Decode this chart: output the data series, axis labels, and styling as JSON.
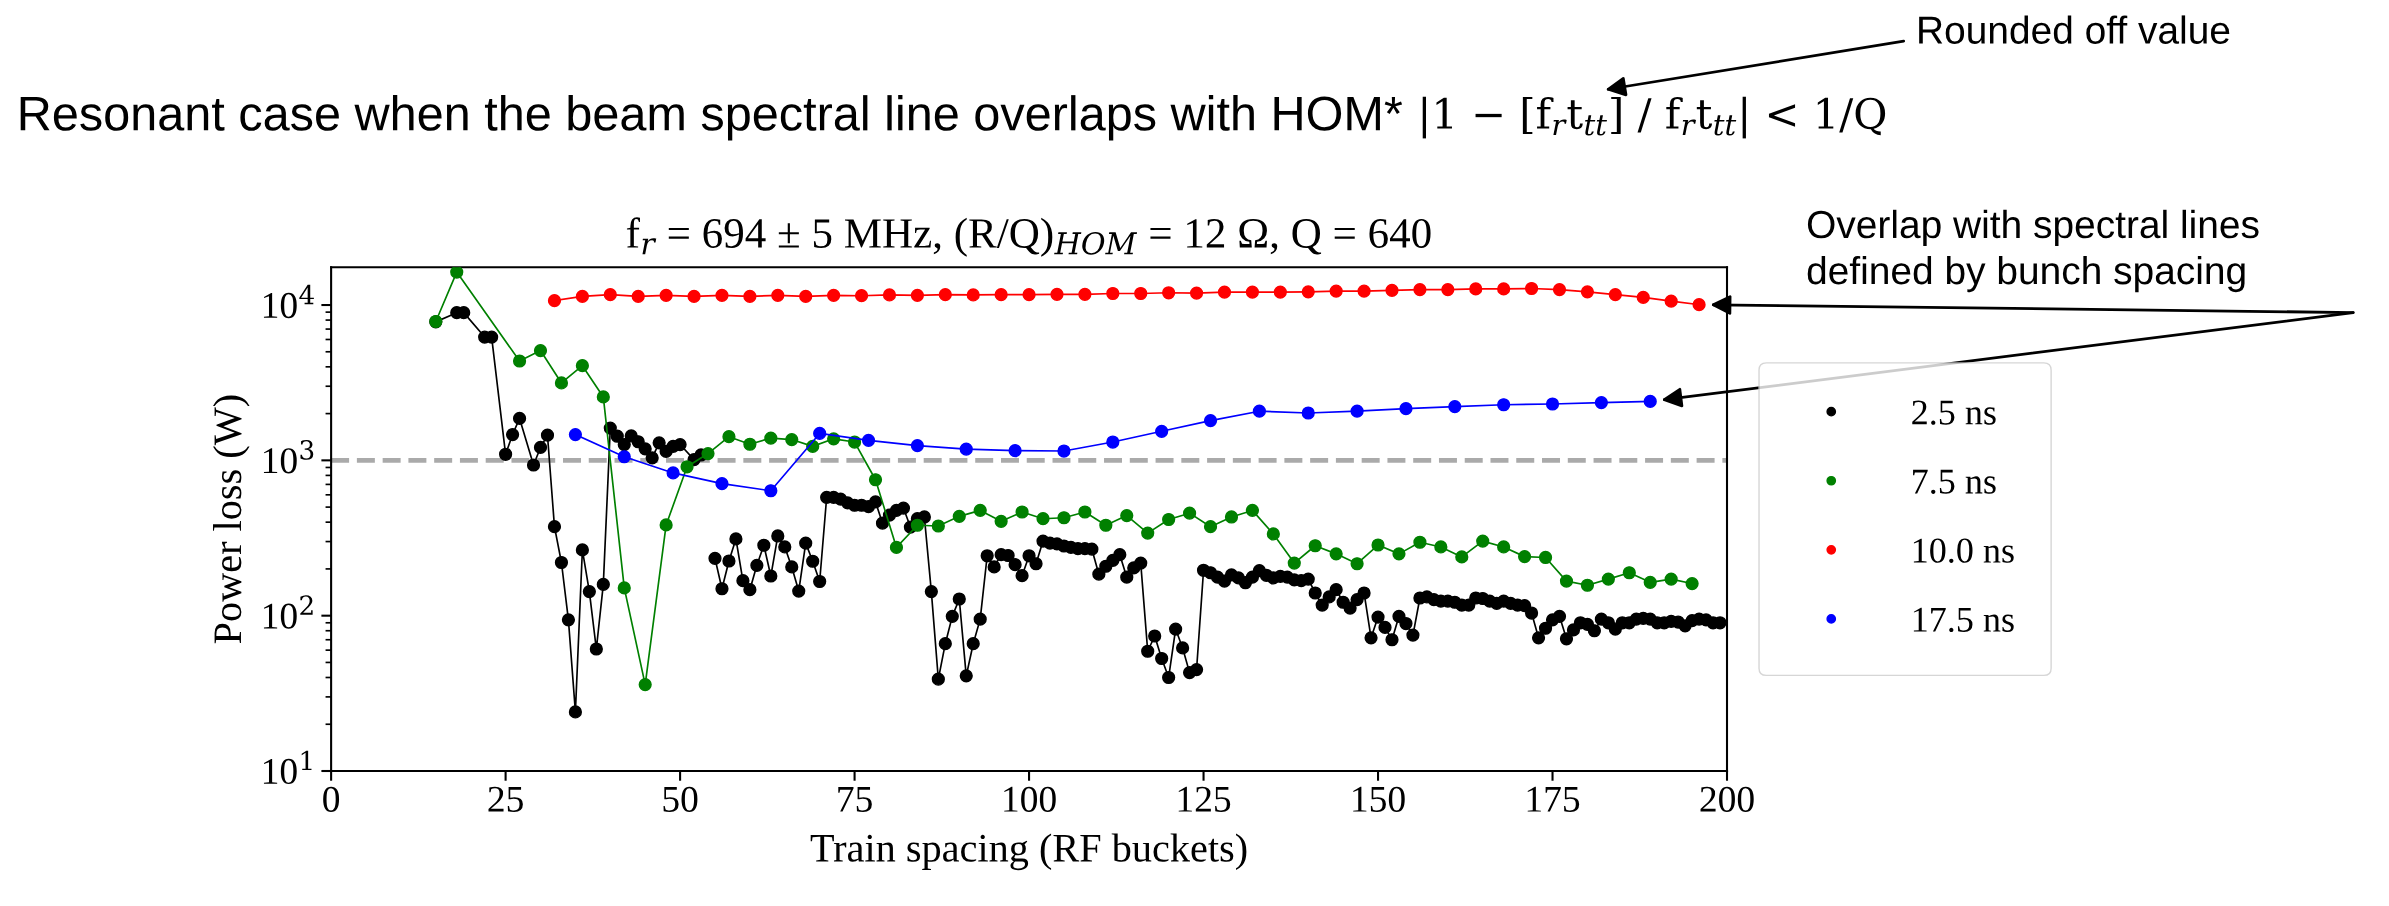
{
  "chart_data": {
    "type": "line",
    "title": "Resonant case when the beam spectral line overlaps with HOM*",
    "subtitle": "f$_{r}$ = 694 ± 5 MHz, (R/Q)$_{HOM}$ = 12 Ω, Q = 640",
    "xlabel": "Train spacing (RF buckets)",
    "ylabel": "Power loss (W)",
    "annotations": [
      "|1 − [f$_{r}$t$_{tt}$] / f$_{r}$t$_{tt}$| < 1/Q",
      "Rounded off value",
      "Overlap with spectral lines\ndefined by bunch spacing"
    ],
    "log": "y",
    "xlim": [
      0,
      200
    ],
    "xticks": [
      0,
      25,
      50,
      75,
      100,
      125,
      150,
      175,
      200
    ],
    "ylim": [
      10,
      17500
    ],
    "yticks": [
      {
        "value": 10,
        "label": "10$^{1}$"
      },
      {
        "value": 100,
        "label": "10$^{2}$"
      },
      {
        "value": 1000,
        "label": "10$^{3}$"
      },
      {
        "value": 10000,
        "label": "10$^{4}$"
      }
    ],
    "grid": false,
    "legend": "right",
    "marker": "circle",
    "line_style": "solid",
    "ref_lines": [
      {
        "axis": "y",
        "value": 1000,
        "color": "#aaaaaa",
        "line_style": "dashed"
      }
    ],
    "series": [
      {
        "name": "2.5 ns",
        "color": "#000000",
        "x": [
          15,
          18,
          19,
          22,
          23,
          25,
          26,
          27,
          29,
          30,
          31,
          32,
          33,
          34,
          35,
          36,
          37,
          38,
          39,
          40,
          41,
          42,
          43,
          44,
          45,
          46,
          47,
          48,
          49,
          50,
          52,
          53,
          54,
          55,
          56,
          57,
          58,
          59,
          60,
          61,
          62,
          63,
          64,
          65,
          66,
          67,
          68,
          69,
          70,
          71,
          72,
          73,
          74,
          75,
          76,
          77,
          78,
          79,
          80,
          81,
          82,
          83,
          84,
          85,
          86,
          87,
          88,
          89,
          90,
          91,
          92,
          93,
          94,
          95,
          96,
          97,
          98,
          99,
          100,
          101,
          102,
          103,
          104,
          105,
          106,
          107,
          108,
          109,
          110,
          111,
          112,
          113,
          114,
          115,
          116,
          117,
          118,
          119,
          120,
          121,
          122,
          123,
          124,
          125,
          126,
          127,
          128,
          129,
          130,
          131,
          132,
          133,
          134,
          135,
          136,
          137,
          138,
          139,
          140,
          141,
          142,
          143,
          144,
          145,
          146,
          147,
          148,
          149,
          150,
          151,
          152,
          153,
          154,
          155,
          156,
          157,
          158,
          159,
          160,
          161,
          162,
          163,
          164,
          165,
          166,
          167,
          168,
          169,
          170,
          171,
          172,
          173,
          174,
          175,
          176,
          177,
          178,
          179,
          180,
          181,
          182,
          183,
          184,
          185,
          186,
          187,
          188,
          189,
          190,
          191,
          192,
          193,
          194,
          195,
          196,
          197,
          198,
          199
        ],
        "values": [
          7800,
          8930,
          8930,
          6220,
          6220,
          1094,
          1466,
          1862,
          933,
          1211,
          1452,
          374,
          220,
          94,
          24,
          265,
          143,
          61,
          159,
          1614,
          1430,
          1264,
          1436,
          1318,
          1186,
          1038,
          1297,
          1142,
          1231,
          1264,
          1011,
          1083,
          null,
          234,
          149,
          225,
          312,
          168,
          147,
          211,
          284,
          180,
          326,
          277,
          206,
          144,
          293,
          224,
          166,
          578,
          578,
          563,
          533,
          514,
          514,
          504,
          540,
          394,
          444,
          476,
          493,
          372,
          421,
          432,
          143,
          39,
          66,
          99,
          128,
          41,
          66,
          95,
          243,
          206,
          247,
          244,
          213,
          181,
          243,
          216,
          302,
          293,
          290,
          281,
          275,
          270,
          270,
          268,
          185,
          208,
          227,
          247,
          177,
          203,
          218,
          59,
          74,
          53,
          40,
          82,
          62,
          43,
          45,
          196,
          189,
          177,
          167,
          183,
          175,
          163,
          177,
          195,
          182,
          175,
          179,
          177,
          170,
          168,
          172,
          140,
          117,
          132,
          147,
          122,
          112,
          127,
          140,
          72,
          98,
          84,
          70,
          99,
          89,
          75,
          130,
          132,
          127,
          124,
          124,
          122,
          117,
          117,
          130,
          129,
          124,
          120,
          124,
          120,
          117,
          116,
          104,
          72,
          83,
          94,
          99,
          71,
          81,
          90,
          88,
          80,
          95,
          90,
          82,
          90,
          90,
          95,
          96,
          95,
          90,
          90,
          92,
          91,
          86,
          93,
          95,
          94,
          90,
          90
        ]
      },
      {
        "name": "7.5 ns",
        "color": "#008000",
        "x": [
          15,
          18,
          27,
          30,
          33,
          36,
          39,
          42,
          45,
          48,
          51,
          54,
          57,
          60,
          63,
          66,
          69,
          72,
          75,
          78,
          81,
          84,
          87,
          90,
          93,
          96,
          99,
          102,
          105,
          108,
          111,
          114,
          117,
          120,
          123,
          126,
          129,
          132,
          135,
          138,
          141,
          144,
          147,
          150,
          153,
          156,
          159,
          162,
          165,
          168,
          171,
          174,
          177,
          180,
          183,
          186,
          189,
          192,
          195
        ],
        "values": [
          7830,
          16300,
          4360,
          5090,
          3150,
          4070,
          2560,
          151,
          36,
          384,
          909,
          1106,
          1420,
          1270,
          1390,
          1361,
          1230,
          1376,
          1312,
          750,
          275,
          382,
          378,
          436,
          476,
          405,
          465,
          421,
          427,
          465,
          382,
          441,
          340,
          416,
          457,
          374,
          432,
          476,
          336,
          218,
          282,
          250,
          216,
          285,
          250,
          297,
          277,
          239,
          302,
          277,
          240,
          237,
          167,
          157,
          172,
          189,
          164,
          172,
          161
        ]
      },
      {
        "name": "10.0 ns",
        "color": "#ff0000",
        "x": [
          32,
          36,
          40,
          44,
          48,
          52,
          56,
          60,
          64,
          68,
          72,
          76,
          80,
          84,
          88,
          92,
          96,
          100,
          104,
          108,
          112,
          116,
          120,
          124,
          128,
          132,
          136,
          140,
          144,
          148,
          152,
          156,
          160,
          164,
          168,
          172,
          176,
          180,
          184,
          188,
          192,
          196
        ],
        "values": [
          10670,
          11360,
          11660,
          11360,
          11540,
          11360,
          11540,
          11360,
          11540,
          11360,
          11540,
          11480,
          11610,
          11540,
          11660,
          11610,
          11660,
          11660,
          11720,
          11720,
          11860,
          11860,
          11990,
          11930,
          12110,
          12110,
          12110,
          12160,
          12300,
          12300,
          12440,
          12570,
          12570,
          12700,
          12700,
          12770,
          12570,
          12160,
          11660,
          11190,
          10590,
          10050
        ]
      },
      {
        "name": "17.5 ns",
        "color": "#0000ff",
        "x": [
          35,
          42,
          49,
          56,
          63,
          70,
          77,
          84,
          91,
          98,
          105,
          112,
          119,
          126,
          133,
          140,
          147,
          154,
          161,
          168,
          175,
          182,
          189
        ],
        "values": [
          1466,
          1055,
          830,
          708,
          637,
          1490,
          1346,
          1244,
          1180,
          1154,
          1148,
          1312,
          1538,
          1803,
          2072,
          2018,
          2072,
          2152,
          2220,
          2280,
          2305,
          2355,
          2395
        ]
      }
    ]
  }
}
